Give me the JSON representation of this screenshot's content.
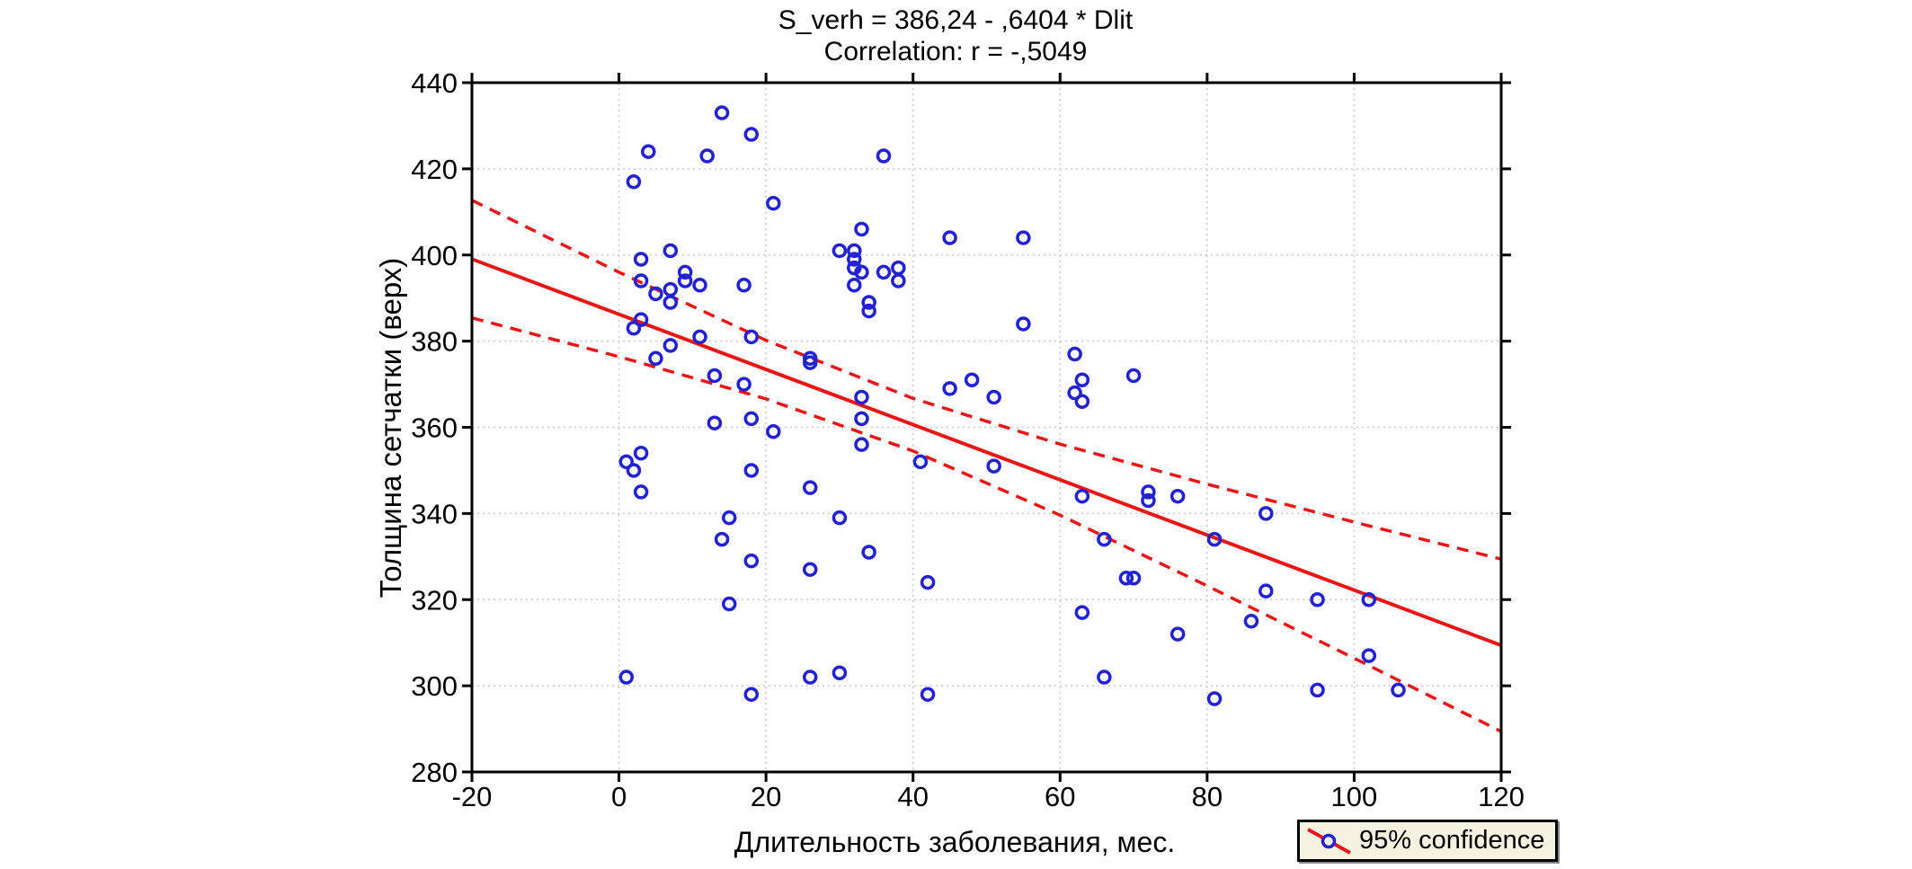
{
  "title": {
    "line1": "S_verh = 386,24 - ,6404  * Dlit",
    "line2": "Correlation: r = -,5049"
  },
  "axes": {
    "x": {
      "label": "Длительность заболевания, мес.",
      "min": -20,
      "max": 120,
      "tick_step": 20,
      "ticks": [
        -20,
        0,
        20,
        40,
        60,
        80,
        100,
        120
      ]
    },
    "y": {
      "label": "Толщина сетчатки (верх)",
      "min": 280,
      "max": 440,
      "tick_step": 20,
      "ticks": [
        280,
        300,
        320,
        340,
        360,
        380,
        400,
        420,
        440
      ]
    }
  },
  "legend": {
    "label": "95% confidence"
  },
  "colors": {
    "point": "#2222d2",
    "line": "#e81616",
    "grid": "#c9c9c9",
    "frame": "#000000",
    "text": "#000000",
    "legend_bg": "#f6f2e2"
  },
  "chart_data": {
    "type": "scatter",
    "title": "S_verh = 386,24 - ,6404  * Dlit",
    "subtitle": "Correlation: r = -,5049",
    "xlabel": "Длительность заболевания, мес.",
    "ylabel": "Толщина сетчатки (верх)",
    "xlim": [
      -20,
      120
    ],
    "ylim": [
      280,
      440
    ],
    "grid": true,
    "legend_position": "bottom-right",
    "legend_entries": [
      {
        "label": "95% confidence",
        "marker": "open-circle-on-line"
      }
    ],
    "points": [
      [
        1,
        352
      ],
      [
        1,
        302
      ],
      [
        2,
        417
      ],
      [
        2,
        383
      ],
      [
        2,
        350
      ],
      [
        3,
        399
      ],
      [
        3,
        394
      ],
      [
        3,
        385
      ],
      [
        3,
        354
      ],
      [
        3,
        345
      ],
      [
        4,
        424
      ],
      [
        5,
        391
      ],
      [
        5,
        376
      ],
      [
        7,
        401
      ],
      [
        7,
        392
      ],
      [
        7,
        389
      ],
      [
        7,
        379
      ],
      [
        9,
        396
      ],
      [
        9,
        394
      ],
      [
        11,
        393
      ],
      [
        11,
        381
      ],
      [
        12,
        423
      ],
      [
        13,
        372
      ],
      [
        13,
        361
      ],
      [
        14,
        433
      ],
      [
        14,
        334
      ],
      [
        15,
        339
      ],
      [
        15,
        319
      ],
      [
        17,
        393
      ],
      [
        17,
        370
      ],
      [
        18,
        428
      ],
      [
        18,
        381
      ],
      [
        18,
        362
      ],
      [
        18,
        350
      ],
      [
        18,
        329
      ],
      [
        18,
        298
      ],
      [
        21,
        412
      ],
      [
        21,
        359
      ],
      [
        26,
        376
      ],
      [
        26,
        375
      ],
      [
        26,
        346
      ],
      [
        26,
        327
      ],
      [
        26,
        302
      ],
      [
        30,
        401
      ],
      [
        30,
        339
      ],
      [
        30,
        303
      ],
      [
        32,
        401
      ],
      [
        32,
        399
      ],
      [
        32,
        397
      ],
      [
        32,
        393
      ],
      [
        33,
        406
      ],
      [
        33,
        396
      ],
      [
        33,
        367
      ],
      [
        33,
        362
      ],
      [
        33,
        356
      ],
      [
        34,
        389
      ],
      [
        34,
        387
      ],
      [
        34,
        331
      ],
      [
        36,
        423
      ],
      [
        36,
        396
      ],
      [
        38,
        397
      ],
      [
        38,
        394
      ],
      [
        41,
        352
      ],
      [
        42,
        324
      ],
      [
        42,
        298
      ],
      [
        45,
        404
      ],
      [
        45,
        369
      ],
      [
        48,
        371
      ],
      [
        51,
        367
      ],
      [
        51,
        351
      ],
      [
        55,
        404
      ],
      [
        55,
        384
      ],
      [
        62,
        377
      ],
      [
        62,
        368
      ],
      [
        63,
        371
      ],
      [
        63,
        366
      ],
      [
        63,
        344
      ],
      [
        63,
        317
      ],
      [
        66,
        334
      ],
      [
        66,
        302
      ],
      [
        69,
        325
      ],
      [
        70,
        372
      ],
      [
        70,
        325
      ],
      [
        72,
        345
      ],
      [
        72,
        343
      ],
      [
        76,
        344
      ],
      [
        76,
        312
      ],
      [
        81,
        334
      ],
      [
        81,
        297
      ],
      [
        86,
        315
      ],
      [
        88,
        340
      ],
      [
        88,
        322
      ],
      [
        95,
        320
      ],
      [
        95,
        299
      ],
      [
        102,
        320
      ],
      [
        102,
        307
      ],
      [
        106,
        299
      ]
    ],
    "regression": {
      "equation": "S_verh = 386,24 - ,6404 * Dlit",
      "intercept": 386.24,
      "slope": -0.6404,
      "x_range": [
        -20,
        120
      ],
      "r": -0.5049
    },
    "confidence_band": {
      "x": [
        -20,
        0,
        20,
        40,
        60,
        80,
        100,
        120
      ],
      "upper": [
        412.7,
        396.0,
        380.2,
        366.7,
        356.1,
        346.8,
        338.0,
        329.4
      ],
      "lower": [
        385.4,
        376.4,
        366.6,
        354.5,
        339.6,
        323.2,
        306.4,
        289.4
      ]
    }
  }
}
